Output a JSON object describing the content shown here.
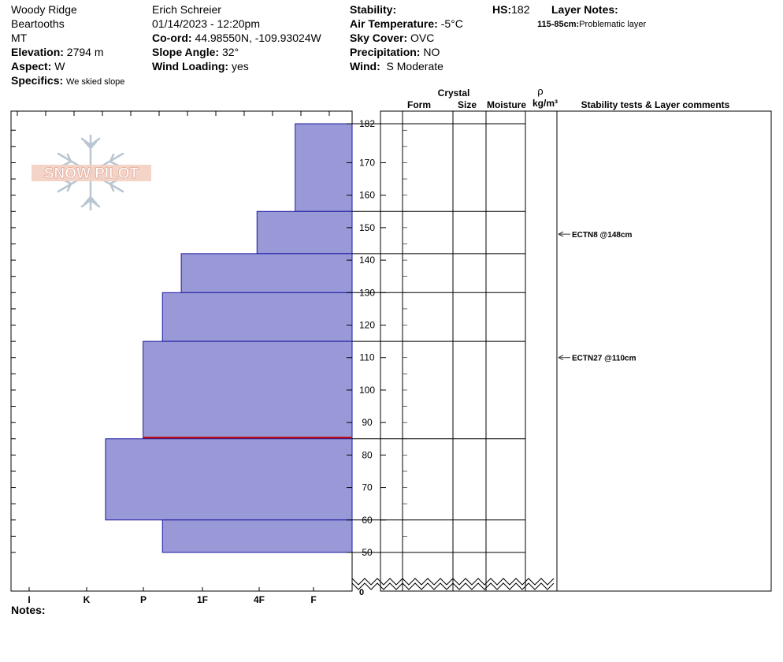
{
  "header": {
    "location": "Woody Ridge",
    "range": "Beartooths",
    "state": "MT",
    "elevation_label": "Elevation:",
    "elevation": "2794 m",
    "aspect_label": "Aspect:",
    "aspect": "W",
    "specifics_label": "Specifics:",
    "specifics": "We skied slope",
    "observer": "Erich  Schreier",
    "datetime": "01/14/2023 - 12:20pm",
    "coord_label": "Co-ord:",
    "coord": "44.98550N, -109.93024W",
    "slope_label": "Slope Angle:",
    "slope": "32°",
    "wind_loading_label": "Wind Loading:",
    "wind_loading": "yes",
    "stability_label": "Stability:",
    "air_temp_label": "Air Temperature:",
    "air_temp": "-5°C",
    "sky_label": "Sky Cover:",
    "sky": "OVC",
    "precip_label": "Precipitation:",
    "precip": "NO",
    "wind_label": "Wind:",
    "wind": "S Moderate",
    "hs_label": "HS:",
    "hs": "182",
    "layer_notes_label": "Layer Notes:",
    "layer_note_range": "115-85cm:",
    "layer_note_text": "Problematic layer",
    "notes_label": "Notes:"
  },
  "columns": {
    "crystal": "Crystal",
    "form": "Form",
    "size": "Size",
    "moisture": "Moisture",
    "rho": "ρ",
    "density_unit": "kg/m³",
    "comments": "Stability tests & Layer comments"
  },
  "logo": {
    "text": "SNOW PILOT"
  },
  "colors": {
    "layer_fill": "#9a99d8",
    "layer_stroke": "#1a1aa0",
    "problem_line": "#c00000"
  },
  "chart_data": {
    "type": "bar",
    "orientation": "horizontal",
    "ylabel": "",
    "ylim": [
      0,
      182
    ],
    "y_ticks": [
      50,
      60,
      70,
      80,
      90,
      100,
      110,
      120,
      130,
      140,
      150,
      160,
      170,
      182
    ],
    "hardness_scale": [
      "I",
      "K",
      "P",
      "1F",
      "4F",
      "F"
    ],
    "layers": [
      {
        "top": 182,
        "bottom": 155,
        "hardness": 1
      },
      {
        "top": 155,
        "bottom": 142,
        "hardness": 1.67
      },
      {
        "top": 142,
        "bottom": 130,
        "hardness": 3
      },
      {
        "top": 130,
        "bottom": 115,
        "hardness": 3.33
      },
      {
        "top": 115,
        "bottom": 85,
        "hardness": 3.67
      },
      {
        "top": 85,
        "bottom": 60,
        "hardness": 4.33
      },
      {
        "top": 60,
        "bottom": 50,
        "hardness": 3.33
      }
    ],
    "problematic_layer": {
      "top": 115,
      "bottom": 85
    },
    "tests": [
      {
        "label": "ECTN8 @148cm",
        "depth": 148
      },
      {
        "label": "ECTN27 @110cm",
        "depth": 110
      }
    ]
  }
}
